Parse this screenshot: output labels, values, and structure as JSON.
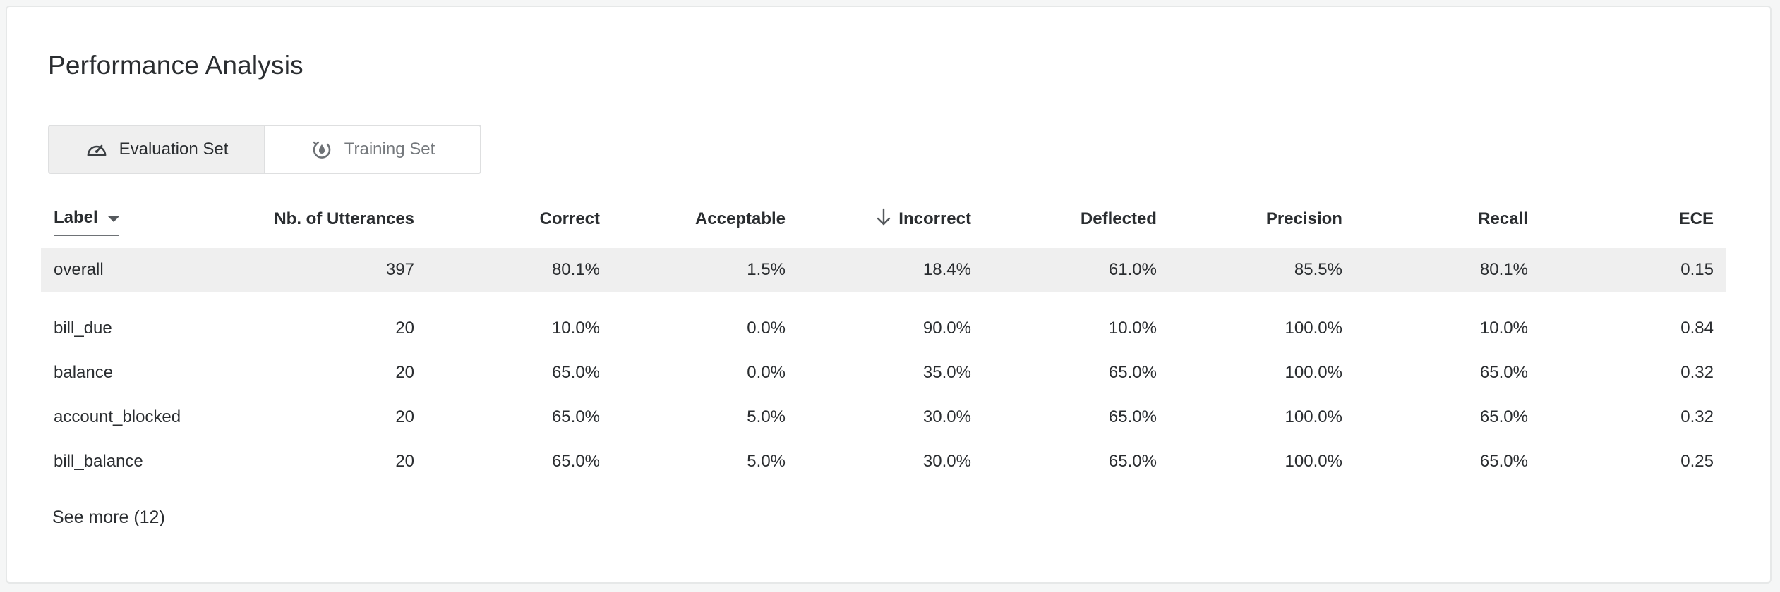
{
  "title": "Performance Analysis",
  "tabs": [
    {
      "label": "Evaluation Set",
      "icon": "gauge-icon",
      "active": true
    },
    {
      "label": "Training Set",
      "icon": "training-cycle-icon",
      "active": false
    }
  ],
  "table": {
    "columns": [
      "Label",
      "Nb. of Utterances",
      "Correct",
      "Acceptable",
      "Incorrect",
      "Deflected",
      "Precision",
      "Recall",
      "ECE"
    ],
    "sorted_by": "Incorrect",
    "sort_direction": "descending",
    "overall": {
      "label": "overall",
      "utterances": "397",
      "correct": "80.1%",
      "acceptable": "1.5%",
      "incorrect": "18.4%",
      "deflected": "61.0%",
      "precision": "85.5%",
      "recall": "80.1%",
      "ece": "0.15"
    },
    "rows": [
      {
        "label": "bill_due",
        "utterances": "20",
        "correct": "10.0%",
        "acceptable": "0.0%",
        "incorrect": "90.0%",
        "deflected": "10.0%",
        "precision": "100.0%",
        "recall": "10.0%",
        "ece": "0.84"
      },
      {
        "label": "balance",
        "utterances": "20",
        "correct": "65.0%",
        "acceptable": "0.0%",
        "incorrect": "35.0%",
        "deflected": "65.0%",
        "precision": "100.0%",
        "recall": "65.0%",
        "ece": "0.32"
      },
      {
        "label": "account_blocked",
        "utterances": "20",
        "correct": "65.0%",
        "acceptable": "5.0%",
        "incorrect": "30.0%",
        "deflected": "65.0%",
        "precision": "100.0%",
        "recall": "65.0%",
        "ece": "0.32"
      },
      {
        "label": "bill_balance",
        "utterances": "20",
        "correct": "65.0%",
        "acceptable": "5.0%",
        "incorrect": "30.0%",
        "deflected": "65.0%",
        "precision": "100.0%",
        "recall": "65.0%",
        "ece": "0.25"
      }
    ]
  },
  "see_more": "See more (12)",
  "colors": {
    "header_row_bg": "#efefef",
    "text": "#2a2d30",
    "muted": "#74787c",
    "border": "#dedfe0"
  }
}
